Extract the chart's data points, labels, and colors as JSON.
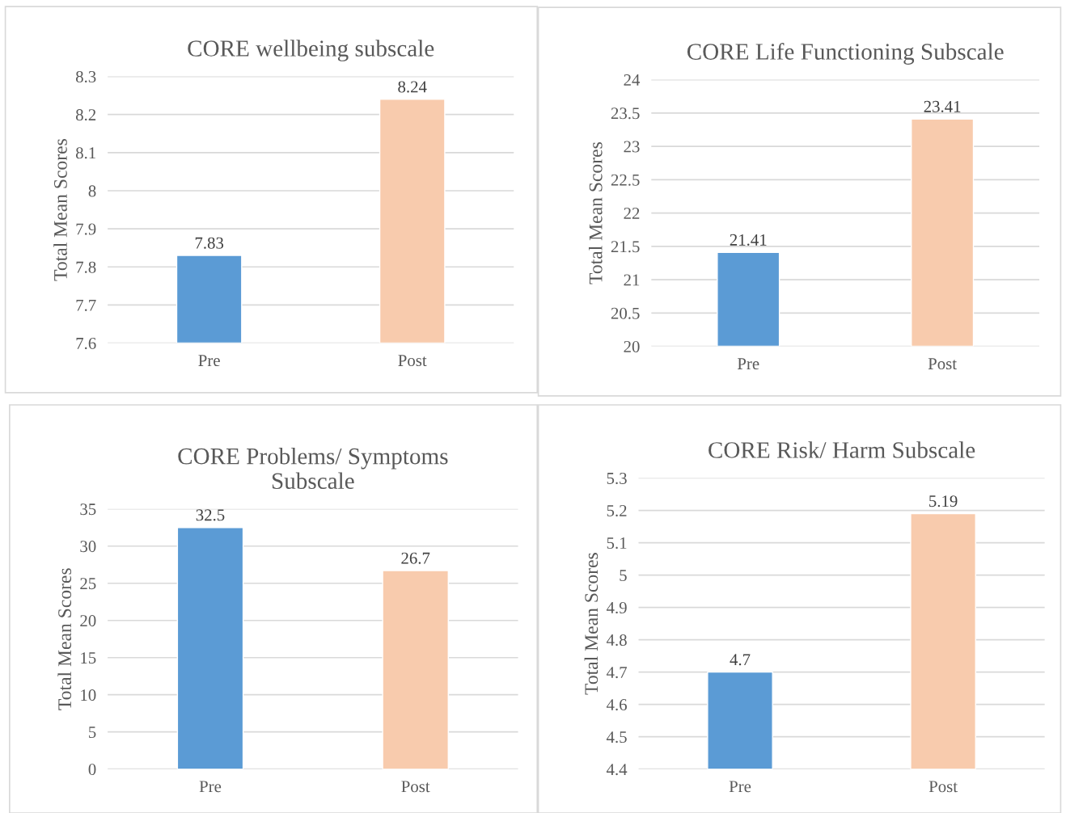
{
  "chart_data": [
    {
      "type": "bar",
      "title": "CORE wellbeing subscale",
      "ylabel": "Total Mean Scores",
      "categories": [
        "Pre",
        "Post"
      ],
      "values": [
        7.83,
        8.24
      ],
      "colors": [
        "#5b9bd5",
        "#f8cbad"
      ],
      "ylim": [
        7.6,
        8.3
      ],
      "yticks": [
        7.6,
        7.7,
        7.8,
        7.9,
        8,
        8.1,
        8.2,
        8.3
      ],
      "grid": "y",
      "data_labels": true
    },
    {
      "type": "bar",
      "title": "CORE Life Functioning Subscale",
      "ylabel": "Total Mean Scores",
      "categories": [
        "Pre",
        "Post"
      ],
      "values": [
        21.41,
        23.41
      ],
      "colors": [
        "#5b9bd5",
        "#f8cbad"
      ],
      "ylim": [
        20,
        24
      ],
      "yticks": [
        20,
        20.5,
        21,
        21.5,
        22,
        22.5,
        23,
        23.5,
        24
      ],
      "grid": "y",
      "data_labels": true
    },
    {
      "type": "bar",
      "title": "CORE Problems/ Symptoms\nSubscale",
      "ylabel": "Total Mean Scores",
      "categories": [
        "Pre",
        "Post"
      ],
      "values": [
        32.5,
        26.7
      ],
      "colors": [
        "#5b9bd5",
        "#f8cbad"
      ],
      "ylim": [
        0,
        35
      ],
      "yticks": [
        0,
        5,
        10,
        15,
        20,
        25,
        30,
        35
      ],
      "grid": "y",
      "data_labels": true
    },
    {
      "type": "bar",
      "title": "CORE Risk/ Harm Subscale",
      "ylabel": "Total Mean Scores",
      "categories": [
        "Pre",
        "Post"
      ],
      "values": [
        4.7,
        5.19
      ],
      "colors": [
        "#5b9bd5",
        "#f8cbad"
      ],
      "ylim": [
        4.4,
        5.3
      ],
      "yticks": [
        4.4,
        4.5,
        4.6,
        4.7,
        4.8,
        4.9,
        5,
        5.1,
        5.2,
        5.3
      ],
      "grid": "y",
      "data_labels": true
    }
  ]
}
